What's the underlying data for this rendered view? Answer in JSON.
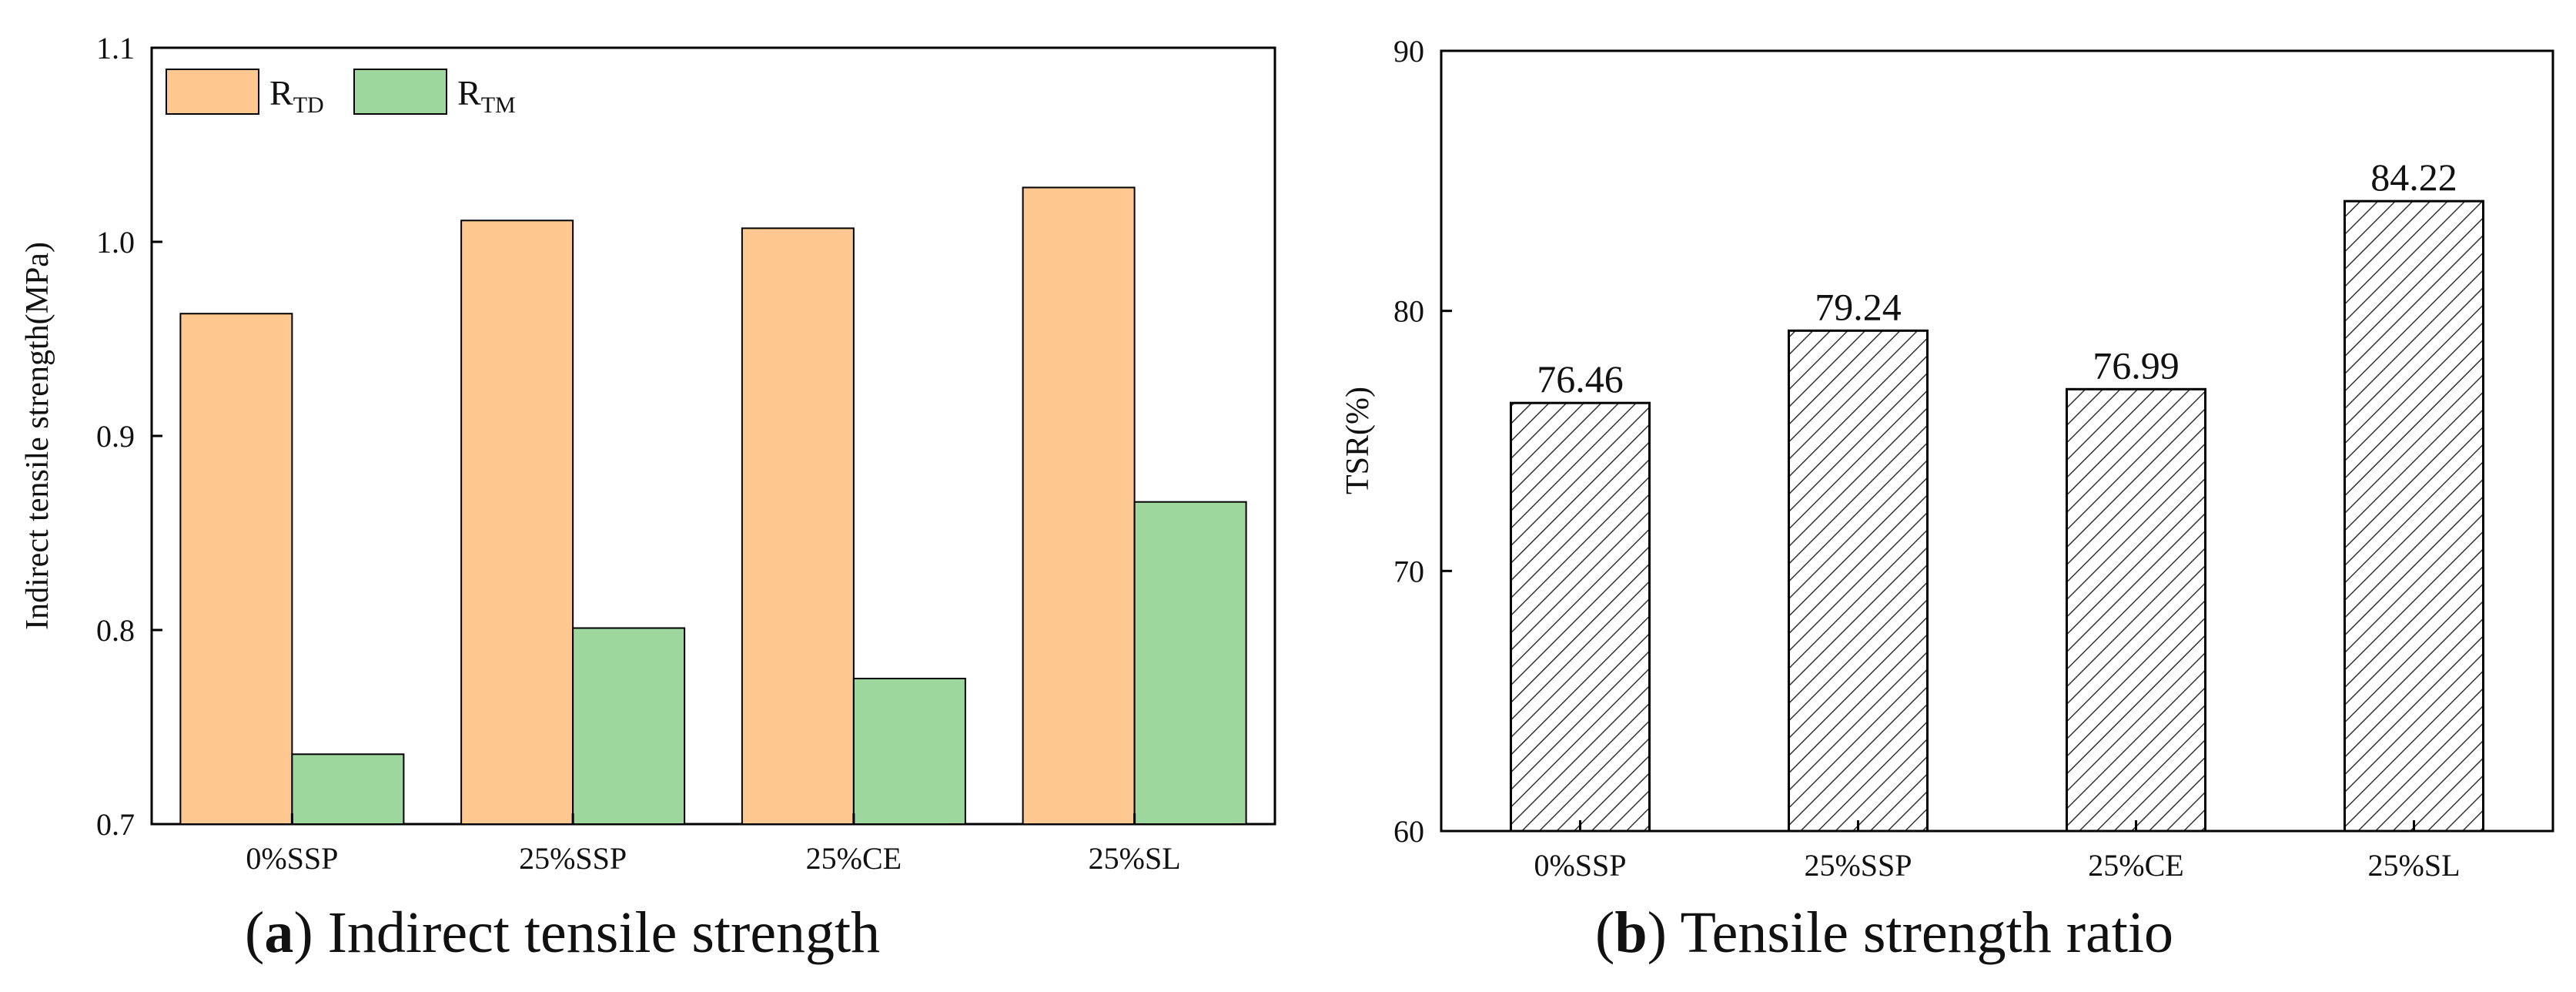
{
  "colors": {
    "rtd": "#FFC891",
    "rtm": "#9DD79D",
    "hatch": "#333333",
    "axis": "#000000"
  },
  "chart_data": [
    {
      "type": "bar",
      "categories": [
        "0%SSP",
        "25%SSP",
        "25%CE",
        "25%SL"
      ],
      "series": [
        {
          "name": "R",
          "sub": "TD",
          "values": [
            0.963,
            1.011,
            1.007,
            1.028
          ]
        },
        {
          "name": "R",
          "sub": "TM",
          "values": [
            0.736,
            0.801,
            0.775,
            0.866
          ]
        }
      ],
      "ylabel": "Indirect tensile strength(MPa)",
      "ylim": [
        0.7,
        1.1
      ],
      "yticks": [
        "0.7",
        "0.8",
        "0.9",
        "1.0",
        "1.1"
      ],
      "legend": "top-left",
      "caption": {
        "letter": "a",
        "text": "Indirect tensile strength"
      }
    },
    {
      "type": "bar",
      "categories": [
        "0%SSP",
        "25%SSP",
        "25%CE",
        "25%SL"
      ],
      "values": [
        76.46,
        79.24,
        76.99,
        84.22
      ],
      "labels": [
        "76.46",
        "79.24",
        "76.99",
        "84.22"
      ],
      "ylabel": "TSR(%)",
      "ylim": [
        60,
        90
      ],
      "yticks": [
        "60",
        "70",
        "80",
        "90"
      ],
      "caption": {
        "letter": "b",
        "text": "Tensile strength ratio"
      }
    }
  ]
}
